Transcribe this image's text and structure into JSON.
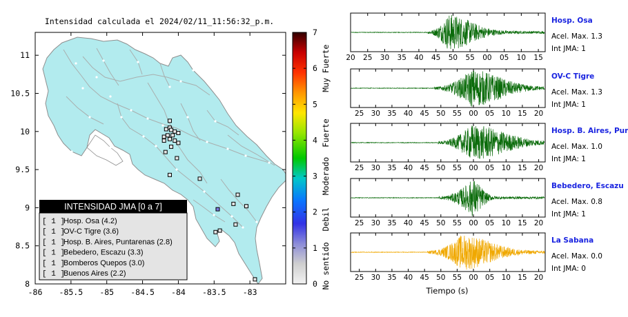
{
  "map": {
    "title": "Intensidad calculada el 2024/02/11_11:56:32_p.m.",
    "x_ticks": [
      -86,
      -85.5,
      -85,
      -84.5,
      -84,
      -83.5,
      -83
    ],
    "x_tick_labels": [
      "-86",
      "-85.5",
      "-85",
      "-84.5",
      "-84",
      "-83.5",
      "-83"
    ],
    "y_ticks": [
      8,
      8.5,
      9,
      9.5,
      10,
      10.5,
      11
    ],
    "y_tick_labels": [
      "8",
      "8.5",
      "9",
      "9.5",
      "10",
      "10.5",
      "11"
    ],
    "xlim": [
      -86,
      -82.5
    ],
    "ylim": [
      8,
      11.3
    ],
    "stations": [
      {
        "lon": -84.12,
        "lat": 10.14,
        "intensity": 1
      },
      {
        "lon": -84.12,
        "lat": 10.05,
        "intensity": 1
      },
      {
        "lon": -84.17,
        "lat": 10.03,
        "intensity": 1
      },
      {
        "lon": -84.1,
        "lat": 10.02,
        "intensity": 1
      },
      {
        "lon": -84.05,
        "lat": 10.0,
        "intensity": 1
      },
      {
        "lon": -84.0,
        "lat": 9.98,
        "intensity": 1
      },
      {
        "lon": -84.15,
        "lat": 9.95,
        "intensity": 1
      },
      {
        "lon": -84.08,
        "lat": 9.95,
        "intensity": 1
      },
      {
        "lon": -84.2,
        "lat": 9.93,
        "intensity": 1
      },
      {
        "lon": -84.12,
        "lat": 9.9,
        "intensity": 1
      },
      {
        "lon": -84.05,
        "lat": 9.88,
        "intensity": 1
      },
      {
        "lon": -84.2,
        "lat": 9.88,
        "intensity": 1
      },
      {
        "lon": -84.0,
        "lat": 9.85,
        "intensity": 1
      },
      {
        "lon": -84.1,
        "lat": 9.8,
        "intensity": 1
      },
      {
        "lon": -84.18,
        "lat": 9.73,
        "intensity": 1
      },
      {
        "lon": -84.02,
        "lat": 9.65,
        "intensity": 1
      },
      {
        "lon": -84.12,
        "lat": 9.43,
        "intensity": 1
      },
      {
        "lon": -83.7,
        "lat": 9.38,
        "intensity": 1
      },
      {
        "lon": -83.17,
        "lat": 9.17,
        "intensity": 1
      },
      {
        "lon": -83.23,
        "lat": 9.05,
        "intensity": 1
      },
      {
        "lon": -83.05,
        "lat": 9.02,
        "intensity": 1
      },
      {
        "lon": -83.45,
        "lat": 8.98,
        "intensity": 2
      },
      {
        "lon": -83.2,
        "lat": 8.78,
        "intensity": 1
      },
      {
        "lon": -83.42,
        "lat": 8.7,
        "intensity": 1
      },
      {
        "lon": -83.48,
        "lat": 8.68,
        "intensity": 1
      },
      {
        "lon": -82.93,
        "lat": 8.06,
        "intensity": 1
      }
    ],
    "legend": {
      "title": "INTENSIDAD JMA [0 a 7]",
      "items": [
        {
          "jma": "[ 1 ]",
          "label": "Hosp. Osa (4.2)"
        },
        {
          "jma": "[ 1 ]",
          "label": "OV-C Tigre (3.6)"
        },
        {
          "jma": "[ 1 ]",
          "label": "Hosp. B. Aires, Puntarenas (2.8)"
        },
        {
          "jma": "[ 1 ]",
          "label": "Bebedero, Escazu (3.3)"
        },
        {
          "jma": "[ 1 ]",
          "label": "Bomberos Quepos (3.0)"
        },
        {
          "jma": "[ 1 ]",
          "label": "Buenos Aires (2.2)"
        }
      ]
    },
    "colors": {
      "land": "#b2ebee",
      "sea": "#ffffff",
      "border": "#9a9a9a"
    }
  },
  "colorbar": {
    "min": 0,
    "max": 7,
    "tick_labels": [
      "0",
      "1",
      "2",
      "3",
      "4",
      "5",
      "6",
      "7"
    ],
    "category_labels": [
      "No sentido",
      "Debil",
      "Moderado",
      "Fuerte",
      "Muy Fuerte"
    ]
  },
  "chart_data": [
    {
      "type": "line",
      "name": "Hosp. Osa",
      "acel_label": "Acel. Max. 1.3",
      "int_label": "Int JMA: 1",
      "color": "#0a6b0a",
      "x_tick_labels": [
        "20",
        "25",
        "30",
        "35",
        "40",
        "45",
        "50",
        "55",
        "00",
        "05",
        "10",
        "15"
      ],
      "onset": 0.395,
      "peak": 0.5,
      "amp": 0.92,
      "decay": 0.18
    },
    {
      "type": "line",
      "name": "OV-C Tigre",
      "acel_label": "Acel. Max. 1.3",
      "int_label": "Int JMA: 1",
      "color": "#0a6b0a",
      "x_tick_labels": [
        "25",
        "30",
        "35",
        "40",
        "45",
        "50",
        "55",
        "00",
        "05",
        "10",
        "15",
        "20"
      ],
      "onset": 0.43,
      "peak": 0.62,
      "amp": 0.95,
      "decay": 0.22
    },
    {
      "type": "line",
      "name": "Hosp. B. Aires, Puntarenas",
      "acel_label": "Acel. Max. 1.0",
      "int_label": "Int JMA: 1",
      "color": "#0a6b0a",
      "x_tick_labels": [
        "25",
        "30",
        "35",
        "40",
        "45",
        "50",
        "55",
        "00",
        "05",
        "10",
        "15",
        "20"
      ],
      "onset": 0.45,
      "peak": 0.62,
      "amp": 0.9,
      "decay": 0.25
    },
    {
      "type": "line",
      "name": "Bebedero, Escazu",
      "acel_label": "Acel. Max. 0.8",
      "int_label": "Int JMA: 1",
      "color": "#0a6b0a",
      "x_tick_labels": [
        "25",
        "30",
        "35",
        "40",
        "45",
        "50",
        "55",
        "00",
        "05",
        "10",
        "15",
        "20"
      ],
      "onset": 0.455,
      "peak": 0.625,
      "amp": 0.95,
      "decay": 0.07
    },
    {
      "type": "line",
      "name": "La Sabana",
      "acel_label": "Acel. Max. 0.0",
      "int_label": "Int JMA: 0",
      "color": "#f0a800",
      "x_tick_labels": [
        "25",
        "30",
        "35",
        "40",
        "45",
        "50",
        "55",
        "00",
        "05",
        "10",
        "15",
        "20"
      ],
      "onset": 0.395,
      "peak": 0.57,
      "amp": 0.9,
      "decay": 0.22,
      "xlabel": "Tiempo (s)"
    }
  ]
}
